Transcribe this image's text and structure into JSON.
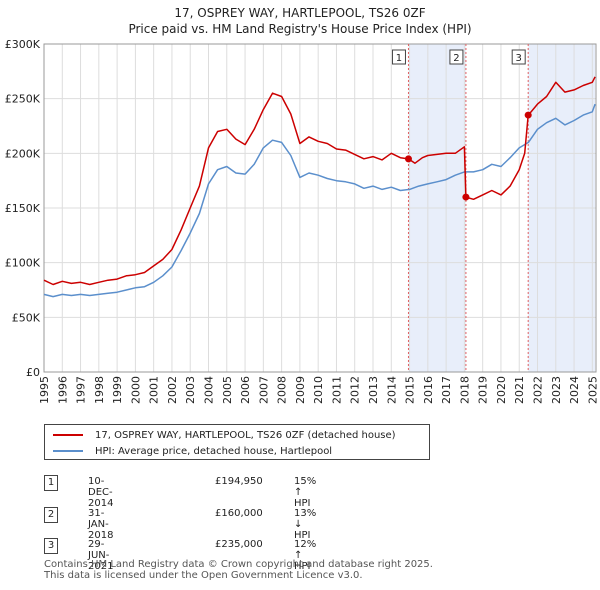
{
  "chart_data": {
    "type": "line",
    "title": "17, OSPREY WAY, HARTLEPOOL, TS26 0ZF",
    "subtitle": "Price paid vs. HM Land Registry's House Price Index (HPI)",
    "xlabel": "",
    "ylabel": "",
    "xlim": [
      1995,
      2025.2
    ],
    "ylim": [
      0,
      300000
    ],
    "y_ticks": [
      0,
      50000,
      100000,
      150000,
      200000,
      250000,
      300000
    ],
    "y_tick_labels": [
      "£0",
      "£50K",
      "£100K",
      "£150K",
      "£200K",
      "£250K",
      "£300K"
    ],
    "x_ticks": [
      1995,
      1996,
      1997,
      1998,
      1999,
      2000,
      2001,
      2002,
      2003,
      2004,
      2005,
      2006,
      2007,
      2008,
      2009,
      2010,
      2011,
      2012,
      2013,
      2014,
      2015,
      2016,
      2017,
      2018,
      2019,
      2020,
      2021,
      2022,
      2023,
      2024,
      2025
    ],
    "x_tick_labels": [
      "1995",
      "1996",
      "1997",
      "1998",
      "1999",
      "2000",
      "2001",
      "2002",
      "2003",
      "2004",
      "2005",
      "2006",
      "2007",
      "2008",
      "2009",
      "2010",
      "2011",
      "2012",
      "2013",
      "2014",
      "2015",
      "2016",
      "2017",
      "2018",
      "2019",
      "2020",
      "2021",
      "2022",
      "2023",
      "2024",
      "2025"
    ],
    "grid": true,
    "series": [
      {
        "name": "17, OSPREY WAY, HARTLEPOOL, TS26 0ZF (detached house)",
        "color": "#cc0000",
        "x": [
          1995,
          1995.5,
          1996,
          1996.5,
          1997,
          1997.5,
          1998,
          1998.5,
          1999,
          1999.5,
          2000,
          2000.5,
          2001,
          2001.5,
          2002,
          2002.5,
          2003,
          2003.5,
          2004,
          2004.5,
          2005,
          2005.5,
          2006,
          2006.5,
          2007,
          2007.5,
          2008,
          2008.5,
          2009,
          2009.5,
          2010,
          2010.5,
          2011,
          2011.5,
          2012,
          2012.5,
          2013,
          2013.5,
          2014,
          2014.5,
          2014.94,
          2015.3,
          2015.7,
          2016,
          2016.5,
          2017,
          2017.5,
          2018.0,
          2018.083,
          2018.5,
          2019,
          2019.5,
          2020,
          2020.5,
          2021,
          2021.3,
          2021.49,
          2021.7,
          2022,
          2022.5,
          2023,
          2023.5,
          2024,
          2024.5,
          2025,
          2025.15
        ],
        "values": [
          84000,
          80000,
          83000,
          81000,
          82000,
          80000,
          82000,
          84000,
          85000,
          88000,
          89000,
          91000,
          97000,
          103000,
          112000,
          130000,
          150000,
          170000,
          205000,
          220000,
          222000,
          213000,
          208000,
          222000,
          240000,
          255000,
          252000,
          236000,
          209000,
          215000,
          211000,
          209000,
          204000,
          203000,
          199000,
          195000,
          197000,
          194000,
          200000,
          196000,
          194950,
          191000,
          196000,
          198000,
          199000,
          200000,
          200000,
          206000,
          160000,
          158000,
          162000,
          166000,
          162000,
          170000,
          185000,
          200000,
          235000,
          239000,
          245000,
          252000,
          265000,
          256000,
          258000,
          262000,
          265000,
          270000
        ]
      },
      {
        "name": "HPI: Average price, detached house, Hartlepool",
        "color": "#5b8fcc",
        "x": [
          1995,
          1995.5,
          1996,
          1996.5,
          1997,
          1997.5,
          1998,
          1998.5,
          1999,
          1999.5,
          2000,
          2000.5,
          2001,
          2001.5,
          2002,
          2002.5,
          2003,
          2003.5,
          2004,
          2004.5,
          2005,
          2005.5,
          2006,
          2006.5,
          2007,
          2007.5,
          2008,
          2008.5,
          2009,
          2009.5,
          2010,
          2010.5,
          2011,
          2011.5,
          2012,
          2012.5,
          2013,
          2013.5,
          2014,
          2014.5,
          2015,
          2015.5,
          2016,
          2016.5,
          2017,
          2017.5,
          2018,
          2018.5,
          2019,
          2019.5,
          2020,
          2020.5,
          2021,
          2021.5,
          2022,
          2022.5,
          2023,
          2023.5,
          2024,
          2024.5,
          2025,
          2025.15
        ],
        "values": [
          71000,
          69000,
          71000,
          70000,
          71000,
          70000,
          71000,
          72000,
          73000,
          75000,
          77000,
          78000,
          82000,
          88000,
          96000,
          111000,
          127000,
          145000,
          172000,
          185000,
          188000,
          182000,
          181000,
          190000,
          205000,
          212000,
          210000,
          198000,
          178000,
          182000,
          180000,
          177000,
          175000,
          174000,
          172000,
          168000,
          170000,
          167000,
          169000,
          166000,
          167000,
          170000,
          172000,
          174000,
          176000,
          180000,
          183000,
          183000,
          185000,
          190000,
          188000,
          196000,
          205000,
          210000,
          222000,
          228000,
          232000,
          226000,
          230000,
          235000,
          238000,
          245000
        ]
      }
    ],
    "sale_markers": [
      {
        "label": "1",
        "x": 2014.94,
        "value": 194950
      },
      {
        "label": "2",
        "x": 2018.083,
        "value": 160000
      },
      {
        "label": "3",
        "x": 2021.49,
        "value": 235000
      }
    ],
    "shaded_ranges": [
      [
        2014.94,
        2018.083
      ],
      [
        2021.49,
        2025.15
      ]
    ]
  },
  "legend": {
    "property_label": "17, OSPREY WAY, HARTLEPOOL, TS26 0ZF (detached house)",
    "hpi_label": "HPI: Average price, detached house, Hartlepool"
  },
  "transactions": [
    {
      "num": "1",
      "date": "10-DEC-2014",
      "price": "£194,950",
      "hpi": "15% ↑ HPI"
    },
    {
      "num": "2",
      "date": "31-JAN-2018",
      "price": "£160,000",
      "hpi": "13% ↓ HPI"
    },
    {
      "num": "3",
      "date": "29-JUN-2021",
      "price": "£235,000",
      "hpi": "12% ↑ HPI"
    }
  ],
  "footer": {
    "line1": "Contains HM Land Registry data © Crown copyright and database right 2025.",
    "line2": "This data is licensed under the Open Government Licence v3.0."
  }
}
